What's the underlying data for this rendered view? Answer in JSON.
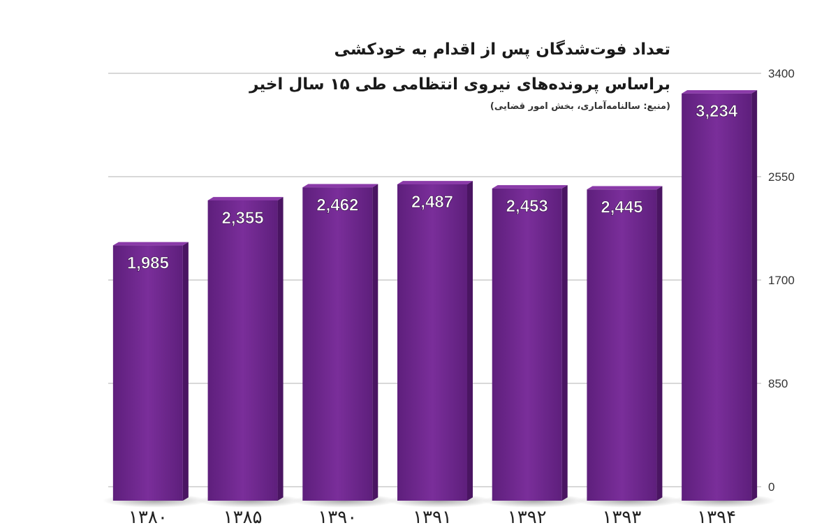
{
  "title": "تعداد فوت‌شدگان پس از اقدام به خودکشی",
  "subtitle": "براساس پرونده‌های نیروی انتظامی طی ۱۵ سال اخیر",
  "source": "(منبع: سالنامه‌آماری، بخش امور قضایی)",
  "colors": {
    "bar_front": "#6a2588",
    "bar_side": "#4a1562",
    "bar_top": "#8a3aa8",
    "grid": "#cccccc",
    "label_text": "#ffffff",
    "axis_text": "#333333"
  },
  "chart_data": {
    "type": "bar",
    "categories": [
      "۱۳۸۰",
      "۱۳۸۵",
      "۱۳۹۰",
      "۱۳۹۱",
      "۱۳۹۲",
      "۱۳۹۳",
      "۱۳۹۴"
    ],
    "values": [
      1985,
      2355,
      2462,
      2487,
      2453,
      2445,
      3234
    ],
    "value_labels": [
      "1,985",
      "2,355",
      "2,462",
      "2,487",
      "2,453",
      "2,445",
      "3,234"
    ],
    "yticks": [
      0,
      850,
      1700,
      2550,
      3400
    ],
    "ylim": [
      0,
      3400
    ],
    "y_axis_side": "right",
    "grid": true
  }
}
